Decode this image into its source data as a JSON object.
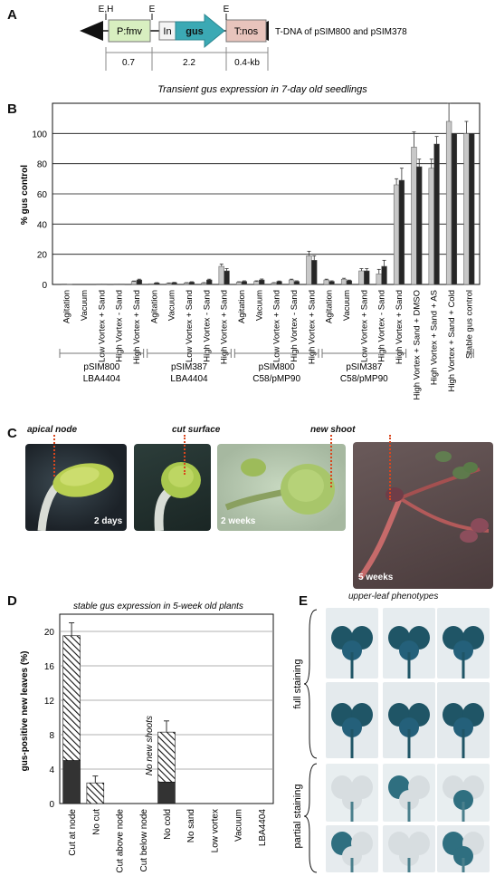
{
  "panels": [
    "A",
    "B",
    "C",
    "D",
    "E"
  ],
  "panel_a": {
    "restriction_sites": {
      "left": "E,H",
      "mid1": "E",
      "mid2": "E"
    },
    "elements": {
      "promoter": "P:fmv",
      "intron": "In",
      "gene": "gus",
      "terminator": "T:nos"
    },
    "description": "T-DNA of pSIM800 and pSIM378",
    "sizes": [
      "0.7",
      "2.2",
      "0.4-kb"
    ]
  },
  "chart_data": [
    {
      "type": "bar",
      "panel": "B",
      "title": "Transient gus expression in 7-day old seedlings",
      "ylabel": "% gus control",
      "ylim": [
        0,
        120
      ],
      "yticks": [
        0,
        20,
        40,
        60,
        80,
        100
      ],
      "categories": [
        "Agitation",
        "Vacuum",
        "Low Vortex + Sand",
        "High Vortex - Sand",
        "High Vortex + Sand",
        "Agitation",
        "Vacuum",
        "Low Vortex + Sand",
        "High Vortex - Sand",
        "High Vortex + Sand",
        "Agitation",
        "Vacuum",
        "Low Vortex + Sand",
        "High Vortex - Sand",
        "High Vortex + Sand",
        "Agitation",
        "Vacuum",
        "Low Vortex + Sand",
        "High Vortex - Sand",
        "High Vortex + Sand",
        "High Vortex + Sand + DMSO",
        "High Vortex + Sand + AS",
        "High Vortex + Sand + Cold",
        "Stable gus control"
      ],
      "series": [
        {
          "values": [
            0.3,
            0,
            0.3,
            0.3,
            2,
            0.5,
            0.8,
            1,
            1,
            12,
            1.5,
            2,
            1,
            3,
            19,
            3,
            3.5,
            9,
            7,
            66,
            91,
            77,
            108,
            100
          ],
          "errors": [
            0,
            0,
            0,
            0,
            0.3,
            0,
            0.2,
            0.2,
            0.2,
            1.5,
            0.3,
            0.4,
            0.2,
            0.5,
            3,
            0.5,
            0.6,
            1.5,
            3,
            4,
            10,
            6,
            12,
            8
          ]
        },
        {
          "values": [
            0.2,
            0,
            0.3,
            0.3,
            3,
            1,
            1.2,
            1.5,
            3,
            9,
            2,
            3,
            2,
            2,
            16,
            2,
            2.5,
            9,
            12,
            69,
            78,
            93,
            100,
            100
          ],
          "errors": [
            0,
            0,
            0,
            0,
            0.5,
            0.2,
            0.2,
            0.3,
            0.5,
            1.5,
            0.4,
            0.6,
            0.3,
            0.4,
            3,
            0.4,
            0.4,
            1.5,
            4,
            8,
            5,
            5,
            0,
            0
          ]
        }
      ],
      "groups": [
        {
          "label1": "pSIM800",
          "label2": "LBA4404"
        },
        {
          "label1": "pSIM387",
          "label2": "LBA4404"
        },
        {
          "label1": "pSIM800",
          "label2": "C58/pMP90"
        },
        {
          "label1": "pSIM387",
          "label2": "C58/pMP90"
        }
      ],
      "colors": {
        "light": "#c8c8c8",
        "dark": "#262626"
      }
    },
    {
      "type": "bar",
      "panel": "D",
      "title": "stable gus expression in 5-week old plants",
      "ylabel": "gus-positive new leaves (%)",
      "ylim": [
        0,
        22
      ],
      "yticks": [
        0,
        4,
        8,
        12,
        16,
        20
      ],
      "categories": [
        "Cut at node",
        "No cut",
        "Cut above node",
        "Cut below node",
        "No cold",
        "No sand",
        "Low vortex",
        "Vacuum",
        "LBA4404"
      ],
      "series": [
        {
          "name": "full",
          "values": [
            5,
            0,
            0,
            0,
            2.5,
            0,
            0,
            0,
            0
          ]
        },
        {
          "name": "partial",
          "values": [
            14.5,
            2.4,
            0,
            0,
            5.8,
            0,
            0,
            0,
            0
          ]
        }
      ],
      "totals_error": [
        1.5,
        0.8,
        0,
        0,
        1.3,
        0,
        0,
        0,
        0
      ],
      "annotation": "No new shoots"
    }
  ],
  "panel_c": {
    "labels": [
      "apical node",
      "cut surface",
      "new shoot"
    ],
    "times": [
      "2 days",
      "2 weeks",
      "5 weeks"
    ]
  },
  "panel_e": {
    "title": "upper-leaf phenotypes",
    "labels": [
      "full staining",
      "partial staining"
    ]
  }
}
